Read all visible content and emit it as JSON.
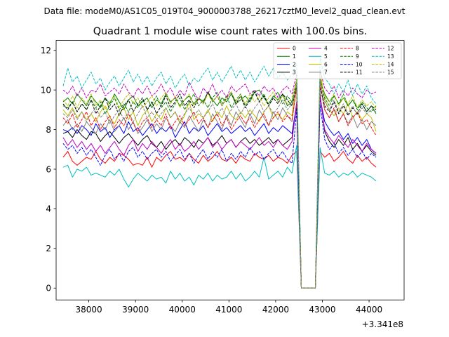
{
  "figure": {
    "suptitle": "Data file: modeM0/AS1C05_019T04_9000003788_26217cztM0_level2_quad_clean.evt"
  },
  "chart_data": {
    "type": "line",
    "title": "Quadrant 1 module wise count rates with 100.0s bins.",
    "xlabel": "",
    "ylabel": "",
    "x_offset_label": "+3.341e8",
    "xlim": [
      37300,
      44750
    ],
    "ylim": [
      -0.6,
      12.5
    ],
    "xticks": [
      38000,
      39000,
      40000,
      41000,
      42000,
      43000,
      44000
    ],
    "xtick_labels": [
      "38000",
      "39000",
      "40000",
      "41000",
      "42000",
      "43000",
      "44000"
    ],
    "yticks": [
      0,
      2,
      4,
      6,
      8,
      10,
      12
    ],
    "ytick_labels": [
      "0",
      "2",
      "4",
      "6",
      "8",
      "10",
      "12"
    ],
    "grid": false,
    "legend_position": "top-right",
    "legend_columns": 4,
    "x_start": 37450,
    "x_step": 100,
    "series": [
      {
        "name": "0",
        "color": "#ff0000",
        "style": "solid",
        "values": [
          6.6,
          6.9,
          6.4,
          6.2,
          6.4,
          6.6,
          6.5,
          6.9,
          6.5,
          6.3,
          6.6,
          6.4,
          6.8,
          6.7,
          6.5,
          6.2,
          6.3,
          6.2,
          6.6,
          6.1,
          6.6,
          6.4,
          6.7,
          6.9,
          6.5,
          6.6,
          6.4,
          6.8,
          6.5,
          6.3,
          6.7,
          6.4,
          6.6,
          6.9,
          6.5,
          6.4,
          6.6,
          6.3,
          6.7,
          6.5,
          6.4,
          6.8,
          6.6,
          6.5,
          6.7,
          6.4,
          6.6,
          6.5,
          6.3,
          6.7,
          6.9,
          0.0,
          0.0,
          0.0,
          0.0,
          6.9,
          6.6,
          6.8,
          6.4,
          6.6,
          6.9,
          6.5,
          6.3,
          6.7,
          6.4,
          6.6,
          6.3,
          6.1
        ]
      },
      {
        "name": "1",
        "color": "#008000",
        "style": "solid",
        "values": [
          9.4,
          9.6,
          9.3,
          9.8,
          9.5,
          9.2,
          9.7,
          9.4,
          9.1,
          9.6,
          9.3,
          9.8,
          9.4,
          9.0,
          9.5,
          9.7,
          9.2,
          9.4,
          9.6,
          9.1,
          9.5,
          9.3,
          9.8,
          9.4,
          9.6,
          9.2,
          9.5,
          9.7,
          9.3,
          9.6,
          9.4,
          9.9,
          9.5,
          9.2,
          9.6,
          9.4,
          9.8,
          9.3,
          9.5,
          9.7,
          9.4,
          9.9,
          10.0,
          9.6,
          9.3,
          9.7,
          9.5,
          9.8,
          9.2,
          9.4,
          10.1,
          0.0,
          0.0,
          0.0,
          0.0,
          10.5,
          9.8,
          9.4,
          9.7,
          9.3,
          9.6,
          9.2,
          9.5,
          9.1,
          9.3,
          8.9,
          9.2,
          8.8
        ]
      },
      {
        "name": "2",
        "color": "#0000ff",
        "style": "solid",
        "values": [
          8.0,
          7.9,
          8.1,
          7.8,
          8.2,
          8.0,
          7.7,
          8.3,
          7.9,
          8.1,
          7.6,
          8.0,
          8.2,
          7.8,
          8.4,
          7.9,
          8.1,
          7.7,
          8.0,
          8.3,
          7.8,
          8.1,
          7.9,
          8.2,
          7.6,
          8.0,
          8.4,
          7.8,
          8.1,
          7.9,
          8.2,
          7.7,
          8.0,
          8.3,
          7.9,
          8.1,
          7.8,
          8.0,
          8.2,
          7.9,
          8.1,
          7.7,
          8.0,
          8.3,
          7.8,
          8.1,
          7.9,
          8.2,
          8.0,
          7.8,
          9.3,
          0.0,
          0.0,
          0.0,
          0.0,
          9.6,
          8.4,
          8.0,
          7.7,
          7.9,
          7.5,
          7.8,
          7.3,
          7.6,
          7.2,
          7.5,
          7.0,
          6.8
        ]
      },
      {
        "name": "3",
        "color": "#000000",
        "style": "solid",
        "values": [
          7.8,
          7.9,
          7.6,
          8.0,
          7.7,
          7.5,
          7.9,
          7.8,
          7.4,
          7.7,
          7.9,
          7.6,
          7.3,
          7.6,
          7.8,
          7.5,
          7.2,
          7.5,
          7.7,
          7.3,
          7.1,
          7.4,
          7.0,
          7.3,
          7.5,
          7.2,
          7.6,
          7.4,
          7.1,
          7.5,
          7.3,
          7.6,
          7.2,
          7.4,
          7.7,
          7.3,
          7.5,
          7.1,
          7.4,
          7.6,
          7.3,
          7.5,
          7.2,
          7.4,
          7.6,
          7.3,
          7.5,
          7.2,
          7.4,
          7.6,
          9.2,
          0.0,
          0.0,
          0.0,
          0.0,
          9.8,
          7.9,
          7.4,
          7.1,
          7.5,
          7.2,
          7.6,
          7.0,
          7.3,
          6.9,
          7.2,
          6.9,
          6.7
        ]
      },
      {
        "name": "4",
        "color": "#bf00bf",
        "style": "solid",
        "values": [
          7.6,
          7.2,
          7.5,
          7.1,
          7.4,
          7.0,
          7.3,
          6.9,
          7.2,
          6.8,
          7.1,
          7.4,
          7.0,
          6.7,
          7.2,
          7.5,
          6.9,
          7.3,
          7.0,
          7.4,
          7.1,
          6.8,
          7.2,
          7.5,
          7.0,
          7.3,
          6.9,
          7.1,
          7.4,
          7.0,
          7.3,
          7.6,
          7.1,
          7.4,
          7.0,
          7.3,
          7.5,
          7.1,
          7.4,
          7.2,
          7.0,
          7.3,
          7.6,
          7.2,
          7.4,
          7.1,
          7.5,
          7.2,
          7.0,
          7.4,
          9.4,
          0.0,
          0.0,
          0.0,
          0.0,
          9.7,
          8.0,
          7.6,
          7.3,
          7.7,
          7.4,
          7.1,
          7.5,
          7.2,
          6.9,
          7.3,
          7.0,
          6.8
        ]
      },
      {
        "name": "5",
        "color": "#00bfbf",
        "style": "solid",
        "values": [
          6.1,
          6.2,
          5.6,
          6.0,
          5.9,
          6.1,
          5.7,
          5.8,
          5.7,
          5.6,
          5.9,
          5.7,
          6.0,
          5.5,
          5.1,
          5.5,
          5.8,
          5.6,
          5.4,
          5.7,
          5.5,
          5.6,
          5.3,
          5.9,
          5.5,
          5.8,
          5.4,
          5.6,
          5.2,
          5.7,
          5.5,
          5.8,
          5.4,
          5.7,
          5.5,
          5.6,
          5.9,
          5.5,
          5.8,
          5.4,
          5.6,
          5.9,
          5.6,
          6.6,
          5.5,
          5.7,
          5.9,
          5.6,
          6.1,
          5.8,
          7.2,
          0.0,
          0.0,
          0.0,
          0.0,
          7.1,
          5.8,
          5.7,
          5.9,
          5.6,
          5.8,
          5.7,
          5.9,
          5.6,
          5.8,
          5.7,
          5.6,
          5.4
        ]
      },
      {
        "name": "6",
        "color": "#bfbf00",
        "style": "solid",
        "values": [
          9.0,
          8.7,
          9.1,
          8.6,
          8.9,
          8.5,
          8.8,
          8.4,
          8.9,
          9.2,
          8.6,
          8.3,
          8.8,
          9.1,
          8.5,
          8.9,
          8.2,
          8.7,
          9.0,
          8.4,
          8.8,
          8.5,
          9.1,
          8.6,
          8.9,
          8.3,
          8.7,
          9.4,
          8.5,
          8.8,
          8.6,
          9.0,
          8.4,
          8.9,
          8.6,
          9.2,
          8.7,
          8.5,
          8.9,
          8.6,
          9.0,
          8.7,
          8.4,
          8.9,
          9.2,
          8.6,
          8.8,
          8.5,
          8.9,
          8.7,
          10.6,
          0.0,
          0.0,
          0.0,
          0.0,
          11.0,
          9.5,
          9.0,
          8.7,
          9.1,
          8.8,
          9.3,
          8.6,
          8.9,
          8.5,
          8.8,
          8.6,
          7.9
        ]
      },
      {
        "name": "7",
        "color": "#808080",
        "style": "solid",
        "values": [
          8.2,
          8.5,
          8.0,
          8.3,
          7.9,
          8.4,
          8.1,
          7.8,
          8.3,
          8.0,
          8.5,
          7.9,
          8.2,
          8.6,
          8.0,
          8.4,
          7.8,
          8.1,
          8.5,
          7.9,
          8.3,
          8.0,
          8.6,
          8.2,
          7.9,
          8.4,
          8.1,
          8.7,
          8.3,
          7.9,
          8.5,
          8.1,
          8.8,
          8.4,
          8.0,
          8.7,
          8.2,
          8.9,
          8.5,
          8.1,
          8.8,
          8.3,
          9.0,
          8.6,
          8.2,
          8.9,
          8.5,
          9.1,
          8.7,
          8.4,
          10.2,
          0.0,
          0.0,
          0.0,
          0.0,
          10.4,
          9.0,
          8.6,
          9.0,
          8.4,
          8.8,
          8.3,
          8.7,
          8.1,
          8.5,
          8.0,
          8.4,
          8.2
        ]
      },
      {
        "name": "8",
        "color": "#ff0000",
        "style": "dashed",
        "values": [
          8.6,
          8.3,
          8.8,
          8.1,
          8.5,
          8.9,
          8.2,
          8.6,
          8.0,
          8.4,
          8.7,
          8.1,
          8.5,
          8.2,
          8.8,
          8.3,
          7.9,
          8.4,
          8.6,
          8.1,
          8.5,
          8.2,
          8.8,
          8.0,
          8.4,
          8.7,
          8.2,
          8.5,
          8.9,
          8.3,
          8.6,
          8.1,
          8.5,
          8.8,
          8.2,
          8.6,
          8.0,
          8.4,
          8.7,
          8.3,
          8.6,
          8.1,
          8.5,
          8.8,
          8.2,
          8.6,
          8.9,
          8.4,
          8.7,
          8.5,
          10.1,
          0.0,
          0.0,
          0.0,
          0.0,
          10.3,
          9.0,
          8.6,
          9.1,
          8.4,
          8.8,
          8.2,
          8.6,
          8.9,
          8.3,
          8.5,
          8.1,
          7.7
        ]
      },
      {
        "name": "9",
        "color": "#008000",
        "style": "dashed",
        "values": [
          9.2,
          9.1,
          9.4,
          8.9,
          9.3,
          9.0,
          9.5,
          9.1,
          9.4,
          8.8,
          9.2,
          9.6,
          9.0,
          9.3,
          8.9,
          9.4,
          9.1,
          9.5,
          9.0,
          9.3,
          9.7,
          9.1,
          9.4,
          8.9,
          9.3,
          9.6,
          9.0,
          9.4,
          9.8,
          9.2,
          9.5,
          9.1,
          9.6,
          9.9,
          9.3,
          9.7,
          9.1,
          9.5,
          9.8,
          9.2,
          9.6,
          10.0,
          9.4,
          9.8,
          9.2,
          9.6,
          9.9,
          9.3,
          9.7,
          9.4,
          10.5,
          0.0,
          0.0,
          0.0,
          0.0,
          10.6,
          9.6,
          9.2,
          9.7,
          9.3,
          9.8,
          9.2,
          9.5,
          9.0,
          9.4,
          9.1,
          8.9,
          9.2
        ]
      },
      {
        "name": "10",
        "color": "#0000ff",
        "style": "dashed",
        "values": [
          7.3,
          7.0,
          7.2,
          6.8,
          7.1,
          6.7,
          7.0,
          6.6,
          6.2,
          6.7,
          7.0,
          6.5,
          6.8,
          6.4,
          6.9,
          7.1,
          6.6,
          6.9,
          6.5,
          6.8,
          7.0,
          6.6,
          6.9,
          6.4,
          6.7,
          7.0,
          6.5,
          6.8,
          6.3,
          6.7,
          7.0,
          6.5,
          6.9,
          6.6,
          7.0,
          6.4,
          6.8,
          6.5,
          6.9,
          6.6,
          7.1,
          6.7,
          6.9,
          6.5,
          6.8,
          7.0,
          6.6,
          6.9,
          6.5,
          6.3,
          9.0,
          0.0,
          0.0,
          0.0,
          0.0,
          9.3,
          7.5,
          7.0,
          7.3,
          6.8,
          7.1,
          6.7,
          7.0,
          6.6,
          6.9,
          6.5,
          6.8,
          6.6
        ]
      },
      {
        "name": "11",
        "color": "#000000",
        "style": "dashed",
        "values": [
          9.3,
          9.0,
          9.4,
          8.9,
          9.3,
          9.0,
          9.5,
          8.8,
          9.2,
          9.6,
          9.0,
          9.3,
          8.7,
          9.2,
          9.5,
          8.9,
          9.3,
          9.6,
          9.0,
          9.4,
          8.8,
          9.2,
          9.7,
          9.1,
          9.4,
          9.8,
          9.2,
          9.5,
          9.1,
          9.6,
          9.3,
          9.9,
          9.4,
          9.7,
          9.2,
          9.6,
          9.9,
          9.3,
          9.7,
          9.1,
          9.5,
          9.9,
          9.4,
          9.7,
          9.2,
          9.6,
          9.3,
          9.8,
          9.5,
          9.2,
          10.2,
          0.0,
          0.0,
          0.0,
          0.0,
          10.1,
          9.2,
          8.9,
          9.4,
          8.8,
          9.2,
          8.7,
          9.1,
          8.8,
          9.3,
          8.9,
          9.2,
          9.0
        ]
      },
      {
        "name": "12",
        "color": "#bf00bf",
        "style": "dashed",
        "values": [
          10.0,
          9.8,
          10.2,
          9.7,
          10.1,
          9.6,
          10.0,
          9.9,
          10.3,
          9.7,
          9.9,
          10.1,
          9.8,
          10.3,
          9.9,
          9.6,
          10.1,
          9.8,
          10.2,
          9.7,
          9.9,
          10.3,
          9.8,
          10.1,
          9.6,
          10.0,
          9.7,
          10.4,
          9.9,
          9.5,
          10.1,
          9.8,
          10.3,
          9.7,
          10.0,
          9.6,
          10.2,
          9.9,
          10.1,
          10.3,
          9.8,
          10.0,
          9.7,
          10.2,
          9.9,
          10.1,
          9.6,
          10.0,
          10.2,
          9.8,
          10.8,
          0.0,
          0.0,
          0.0,
          0.0,
          11.0,
          10.1,
          9.8,
          10.2,
          9.6,
          10.0,
          9.7,
          10.1,
          9.8,
          9.6,
          10.0,
          9.8,
          9.9
        ]
      },
      {
        "name": "13",
        "color": "#00bfbf",
        "style": "dashed",
        "values": [
          10.2,
          11.1,
          10.4,
          10.7,
          10.1,
          10.5,
          10.9,
          10.3,
          10.6,
          10.0,
          10.4,
          10.7,
          10.2,
          10.6,
          11.0,
          10.4,
          10.8,
          10.3,
          10.7,
          10.2,
          10.6,
          10.9,
          10.3,
          10.7,
          10.1,
          10.5,
          10.8,
          10.2,
          10.6,
          10.4,
          10.8,
          11.1,
          10.5,
          10.9,
          10.4,
          10.8,
          11.2,
          10.6,
          11.0,
          10.5,
          10.9,
          10.4,
          10.8,
          11.2,
          10.7,
          11.1,
          10.6,
          10.9,
          10.5,
          10.8,
          11.3,
          0.0,
          0.0,
          0.0,
          0.0,
          11.6,
          10.6,
          10.3,
          9.8,
          10.3,
          9.9,
          10.5,
          9.7,
          10.3,
          9.8,
          10.2,
          9.6,
          9.3
        ]
      },
      {
        "name": "14",
        "color": "#bfbf00",
        "style": "dashed",
        "values": [
          9.5,
          9.2,
          9.7,
          9.1,
          9.6,
          9.3,
          9.8,
          9.2,
          9.5,
          9.0,
          9.4,
          9.7,
          9.1,
          9.5,
          9.8,
          9.3,
          9.6,
          9.1,
          9.4,
          9.7,
          9.2,
          9.6,
          9.9,
          9.3,
          9.7,
          9.1,
          9.5,
          9.8,
          9.2,
          9.6,
          9.3,
          9.8,
          9.4,
          9.7,
          9.2,
          9.6,
          9.9,
          9.4,
          9.7,
          9.3,
          9.8,
          9.4,
          9.7,
          9.2,
          9.6,
          9.9,
          9.4,
          9.7,
          9.3,
          9.6,
          10.5,
          0.0,
          0.0,
          0.0,
          0.0,
          10.7,
          9.7,
          9.4,
          9.8,
          9.2,
          9.6,
          9.3,
          9.7,
          9.1,
          9.5,
          9.2,
          9.4,
          9.1
        ]
      },
      {
        "name": "15",
        "color": "#808080",
        "style": "dashed",
        "values": [
          8.8,
          8.6,
          9.0,
          8.5,
          8.9,
          8.4,
          8.8,
          9.1,
          8.6,
          8.9,
          8.3,
          8.7,
          9.0,
          8.5,
          8.9,
          8.4,
          8.8,
          9.2,
          8.6,
          8.9,
          8.5,
          8.8,
          9.1,
          8.6,
          8.9,
          8.4,
          8.8,
          9.1,
          8.7,
          9.0,
          8.6,
          8.9,
          9.3,
          8.7,
          9.1,
          8.6,
          9.0,
          9.3,
          8.8,
          9.2,
          8.7,
          9.1,
          9.4,
          8.9,
          9.2,
          8.8,
          9.1,
          9.5,
          9.0,
          9.3,
          10.3,
          0.0,
          0.0,
          0.0,
          0.0,
          10.5,
          9.4,
          9.0,
          9.5,
          8.9,
          9.3,
          8.8,
          9.2,
          8.7,
          9.1,
          8.8,
          9.0,
          8.9
        ]
      }
    ]
  }
}
